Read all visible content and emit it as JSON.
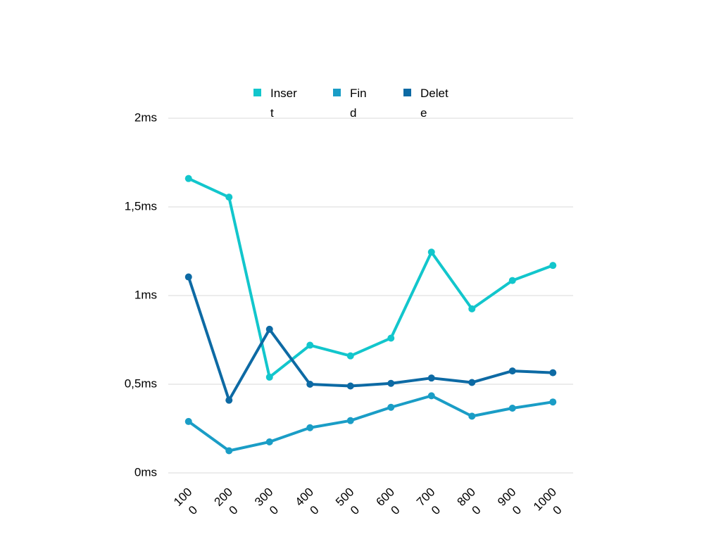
{
  "chart_data": {
    "type": "line",
    "title": "",
    "xlabel": "",
    "ylabel": "",
    "categories": [
      "1000",
      "2000",
      "3000",
      "4000",
      "5000",
      "6000",
      "7000",
      "8000",
      "9000",
      "10000"
    ],
    "ylim": [
      0,
      2
    ],
    "yticks": [
      {
        "value": 0,
        "label": "0ms"
      },
      {
        "value": 0.5,
        "label": "0,5ms"
      },
      {
        "value": 1,
        "label": "1ms"
      },
      {
        "value": 1.5,
        "label": "1,5ms"
      },
      {
        "value": 2,
        "label": "2ms"
      }
    ],
    "grid": true,
    "legend_position": "top",
    "series": [
      {
        "name": "Insert",
        "color": "#12c6cc",
        "values": [
          1.66,
          1.555,
          0.54,
          0.72,
          0.66,
          0.76,
          1.245,
          0.925,
          1.085,
          1.17
        ]
      },
      {
        "name": "Find",
        "color": "#1a9dc6",
        "values": [
          0.29,
          0.125,
          0.175,
          0.255,
          0.295,
          0.37,
          0.435,
          0.32,
          0.365,
          0.4
        ]
      },
      {
        "name": "Delete",
        "color": "#0d6aa4",
        "values": [
          1.105,
          0.41,
          0.81,
          0.5,
          0.49,
          0.505,
          0.535,
          0.51,
          0.575,
          0.565
        ]
      }
    ]
  }
}
